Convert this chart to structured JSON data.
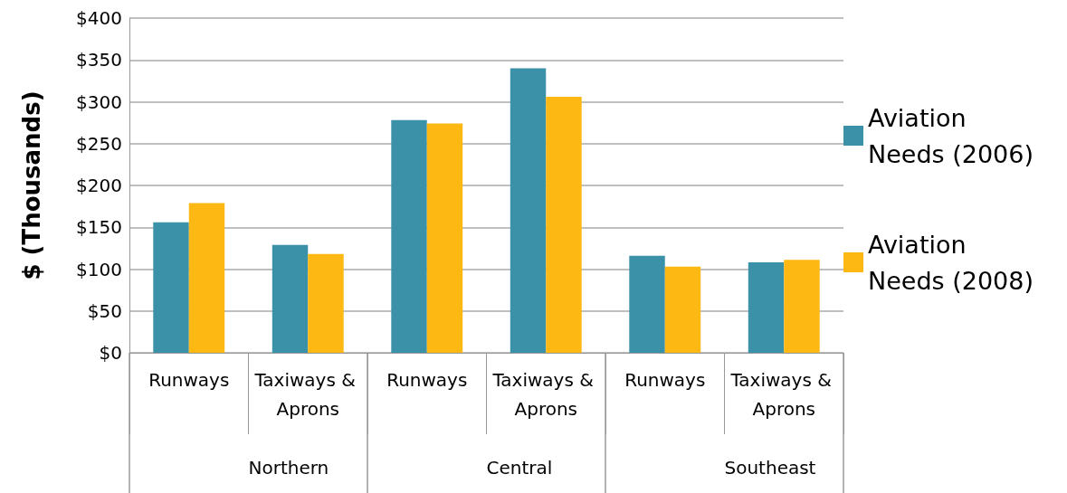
{
  "chart_data": {
    "type": "bar",
    "ylabel": "$ (Thousands)",
    "categories": [
      "Runways",
      "Taxiways & Aprons",
      "Runways",
      "Taxiways & Aprons",
      "Runways",
      "Taxiways & Aprons"
    ],
    "annotations": [
      "Northern",
      "Central",
      "Southeast"
    ],
    "series": [
      {
        "name": "Aviation Needs (2006)",
        "color": "#3a91a8",
        "values": [
          156,
          129,
          278,
          340,
          116,
          108
        ]
      },
      {
        "name": "Aviation Needs (2008)",
        "color": "#fdb813",
        "values": [
          179,
          118,
          274,
          306,
          103,
          111
        ]
      }
    ],
    "ylim": [
      0,
      400
    ],
    "yticks": [
      {
        "value": 0,
        "label": "$0"
      },
      {
        "value": 50,
        "label": "$50"
      },
      {
        "value": 100,
        "label": "$100"
      },
      {
        "value": 150,
        "label": "$150"
      },
      {
        "value": 200,
        "label": "$200"
      },
      {
        "value": 250,
        "label": "$250"
      },
      {
        "value": 300,
        "label": "$300"
      },
      {
        "value": 350,
        "label": "$350"
      },
      {
        "value": 400,
        "label": "$400"
      }
    ],
    "grid": true,
    "legend": "right"
  }
}
